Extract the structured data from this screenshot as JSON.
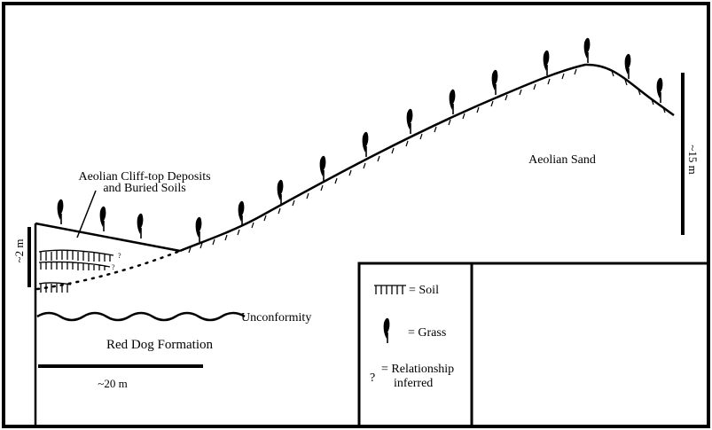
{
  "labels": {
    "cliff_top": [
      "Aeolian Cliff-top Deposits",
      "and Buried Soils"
    ],
    "aeolian_sand": "Aeolian Sand",
    "unconformity": "Unconformity",
    "red_dog": "Red Dog Formation",
    "scale_horizontal": "~20 m",
    "scale_vertical_right": "~15 m",
    "scale_vertical_left": "~2 m",
    "question_mark": "?"
  },
  "legend": {
    "soil": "= Soil",
    "grass": "= Grass",
    "question": "?",
    "relationship": [
      "= Relationship",
      "inferred"
    ]
  }
}
